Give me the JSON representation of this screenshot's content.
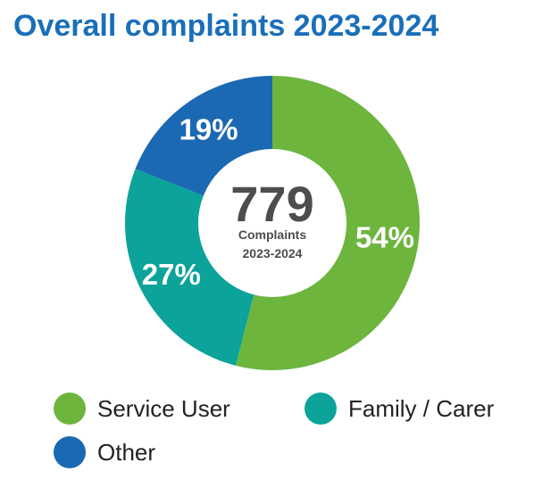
{
  "title": "Overall complaints 2023-2024",
  "colors": {
    "title": "#1a6fb9",
    "center_number": "#4d4d4d",
    "center_label": "#4d4d4d",
    "slice_label": "#ffffff"
  },
  "center": {
    "number": "779",
    "line1": "Complaints",
    "line2": "2023-2024"
  },
  "chart_data": {
    "type": "pie",
    "style": "donut",
    "total": 779,
    "start_angle_deg": 0,
    "direction": "clockwise",
    "slices": [
      {
        "name": "Service User",
        "value": 54,
        "label": "54%",
        "color": "#6db53d"
      },
      {
        "name": "Family / Carer",
        "value": 27,
        "label": "27%",
        "color": "#0ba39a"
      },
      {
        "name": "Other",
        "value": 19,
        "label": "19%",
        "color": "#1b69b2"
      }
    ],
    "legend_position": "bottom"
  },
  "legend": {
    "items": [
      {
        "label": "Service User",
        "color": "#6db53d"
      },
      {
        "label": "Family / Carer",
        "color": "#0ba39a"
      },
      {
        "label": "Other",
        "color": "#1b69b2"
      }
    ]
  }
}
